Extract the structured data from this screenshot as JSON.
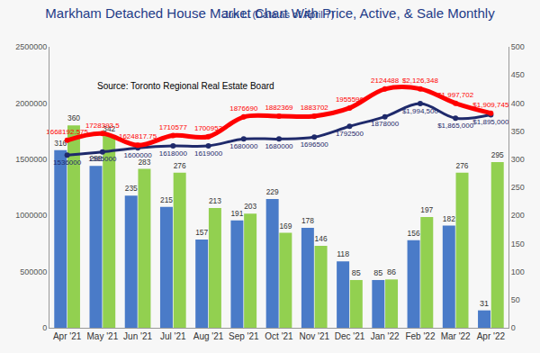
{
  "chart_data": {
    "type": "bar",
    "title": "Markham Detached House Market Chart With Price, Active, & Sale Monthly",
    "subtitle": "Jun Li (Data as of April 7)",
    "annotations": [
      "Source: Toronto Regional Real Estate Board"
    ],
    "categories": [
      "Apr '21",
      "May '21",
      "Jun '21",
      "Jul '21",
      "Aug '21",
      "Sep '21",
      "Oct '21",
      "Nov '21",
      "Dec '21",
      "Jan '22",
      "Feb '22",
      "Mar '22",
      "Apr '22"
    ],
    "series": [
      {
        "type": "bar",
        "color": "#4a7bc8",
        "axis": "y2",
        "values": [
          316,
          288,
          235,
          215,
          157,
          191,
          229,
          178,
          118,
          85,
          156,
          182,
          31
        ]
      },
      {
        "type": "bar",
        "color": "#92d050",
        "axis": "y2",
        "values": [
          360,
          342,
          283,
          276,
          213,
          203,
          169,
          146,
          85,
          86,
          197,
          276,
          295
        ]
      },
      {
        "type": "line",
        "color": "#1f2a6b",
        "marker": "circle",
        "values": [
          1536000,
          1565000,
          1600000,
          1618000,
          1619000,
          1680000,
          1680000,
          1696500,
          1792500,
          1878000,
          1994500,
          1865000,
          1895000
        ],
        "value_labels": [
          "1536000",
          "1565000",
          "1600000",
          "1618000",
          "1619000",
          "1680000",
          "1680000",
          "1696500",
          "1792500",
          "1878000",
          "$1,994,500",
          "$1,865,000",
          "$1,895,000"
        ]
      },
      {
        "type": "line",
        "color": "#ff0000",
        "marker": "circle",
        "values": [
          1668192.575,
          1728393.5,
          1624817.75,
          1710577,
          1700953,
          1876690,
          1882369,
          1883702,
          1955596,
          2124488,
          2126348,
          1997702,
          1909745
        ],
        "value_labels": [
          "1668192.575",
          "1728393.5",
          "1624817.75",
          "1710577",
          "1700953",
          "1876690",
          "1882369",
          "1883702",
          "1955596",
          "2124488",
          "$2,126,348",
          "$1,997,702",
          "$1,909,745"
        ]
      }
    ],
    "ylim": [
      0,
      2500000
    ],
    "yticks": [
      0,
      500000,
      1000000,
      1500000,
      2000000,
      2500000
    ],
    "y2lim": [
      0,
      500
    ],
    "y2ticks": [
      0,
      50,
      100,
      150,
      200,
      250,
      300,
      350,
      400,
      450,
      500
    ],
    "grid": false,
    "data_labels": true
  }
}
